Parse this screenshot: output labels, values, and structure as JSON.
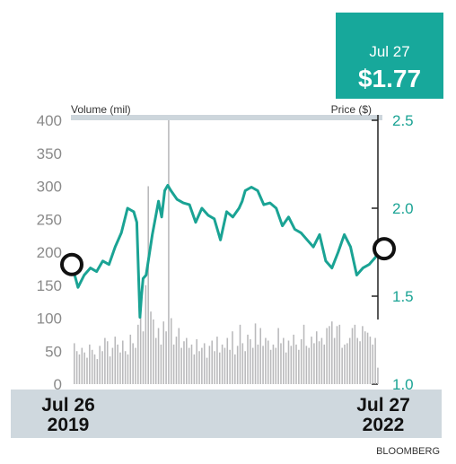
{
  "callout": {
    "date": "Jul 27",
    "value": "$1.77",
    "bg_color": "#17a89b"
  },
  "chart_data": {
    "type": "line+bar",
    "left_axis": {
      "label": "Volume (mil)",
      "ticks": [
        0,
        50,
        100,
        150,
        200,
        250,
        300,
        350,
        400
      ],
      "range": [
        0,
        400
      ]
    },
    "right_axis": {
      "label": "Price ($)",
      "ticks": [
        "1.0",
        "1.5",
        "2.0",
        "2.5"
      ],
      "range": [
        1.0,
        2.5
      ]
    },
    "x_labels": {
      "start_date": "Jul 26",
      "start_year": "2019",
      "end_date": "Jul 27",
      "end_year": "2022"
    },
    "source": "BLOOMBERG",
    "colors": {
      "price": "#1aa394",
      "volume": "#b9b9bb",
      "axis_band": "#cdd6dc",
      "date_band": "#cfd8de",
      "tick_text": "#8a8a8a",
      "right_tick_text": "#1aa394"
    },
    "price": {
      "name": "Price ($)",
      "x": [
        0,
        0.02,
        0.04,
        0.06,
        0.08,
        0.1,
        0.12,
        0.14,
        0.16,
        0.18,
        0.2,
        0.21,
        0.22,
        0.225,
        0.23,
        0.24,
        0.26,
        0.28,
        0.29,
        0.3,
        0.31,
        0.32,
        0.34,
        0.36,
        0.38,
        0.4,
        0.42,
        0.44,
        0.46,
        0.48,
        0.5,
        0.52,
        0.54,
        0.55,
        0.56,
        0.58,
        0.6,
        0.62,
        0.64,
        0.66,
        0.68,
        0.7,
        0.72,
        0.74,
        0.76,
        0.78,
        0.8,
        0.82,
        0.84,
        0.86,
        0.88,
        0.9,
        0.92,
        0.94,
        0.96,
        0.98,
        1.0
      ],
      "values": [
        1.68,
        1.55,
        1.62,
        1.66,
        1.64,
        1.7,
        1.68,
        1.78,
        1.86,
        2.0,
        1.98,
        1.92,
        1.38,
        1.5,
        1.6,
        1.62,
        1.85,
        2.04,
        1.95,
        2.1,
        2.13,
        2.1,
        2.05,
        2.03,
        2.02,
        1.92,
        2.0,
        1.96,
        1.94,
        1.82,
        1.98,
        1.95,
        2.0,
        2.04,
        2.1,
        2.12,
        2.1,
        2.02,
        2.03,
        2.0,
        1.9,
        1.95,
        1.88,
        1.86,
        1.82,
        1.78,
        1.85,
        1.7,
        1.66,
        1.75,
        1.85,
        1.78,
        1.62,
        1.66,
        1.68,
        1.72,
        1.77
      ]
    },
    "volume": {
      "name": "Volume (mil)",
      "values": [
        62,
        50,
        45,
        55,
        48,
        40,
        60,
        52,
        45,
        38,
        58,
        50,
        70,
        65,
        42,
        55,
        72,
        60,
        48,
        66,
        50,
        45,
        75,
        62,
        55,
        90,
        120,
        80,
        150,
        300,
        110,
        98,
        70,
        85,
        60,
        95,
        80,
        400,
        100,
        60,
        72,
        85,
        55,
        65,
        70,
        55,
        60,
        45,
        68,
        50,
        55,
        62,
        40,
        58,
        66,
        50,
        72,
        48,
        60,
        55,
        70,
        52,
        80,
        45,
        58,
        90,
        62,
        50,
        75,
        68,
        55,
        92,
        60,
        85,
        58,
        70,
        66,
        52,
        60,
        55,
        85,
        62,
        70,
        48,
        66,
        58,
        75,
        60,
        52,
        68,
        90,
        58,
        55,
        72,
        62,
        80,
        65,
        70,
        60,
        85,
        88,
        95,
        70,
        88,
        90,
        55,
        60,
        62,
        70,
        85,
        90,
        70,
        65,
        88,
        80,
        78,
        72,
        60,
        70,
        25
      ]
    }
  }
}
